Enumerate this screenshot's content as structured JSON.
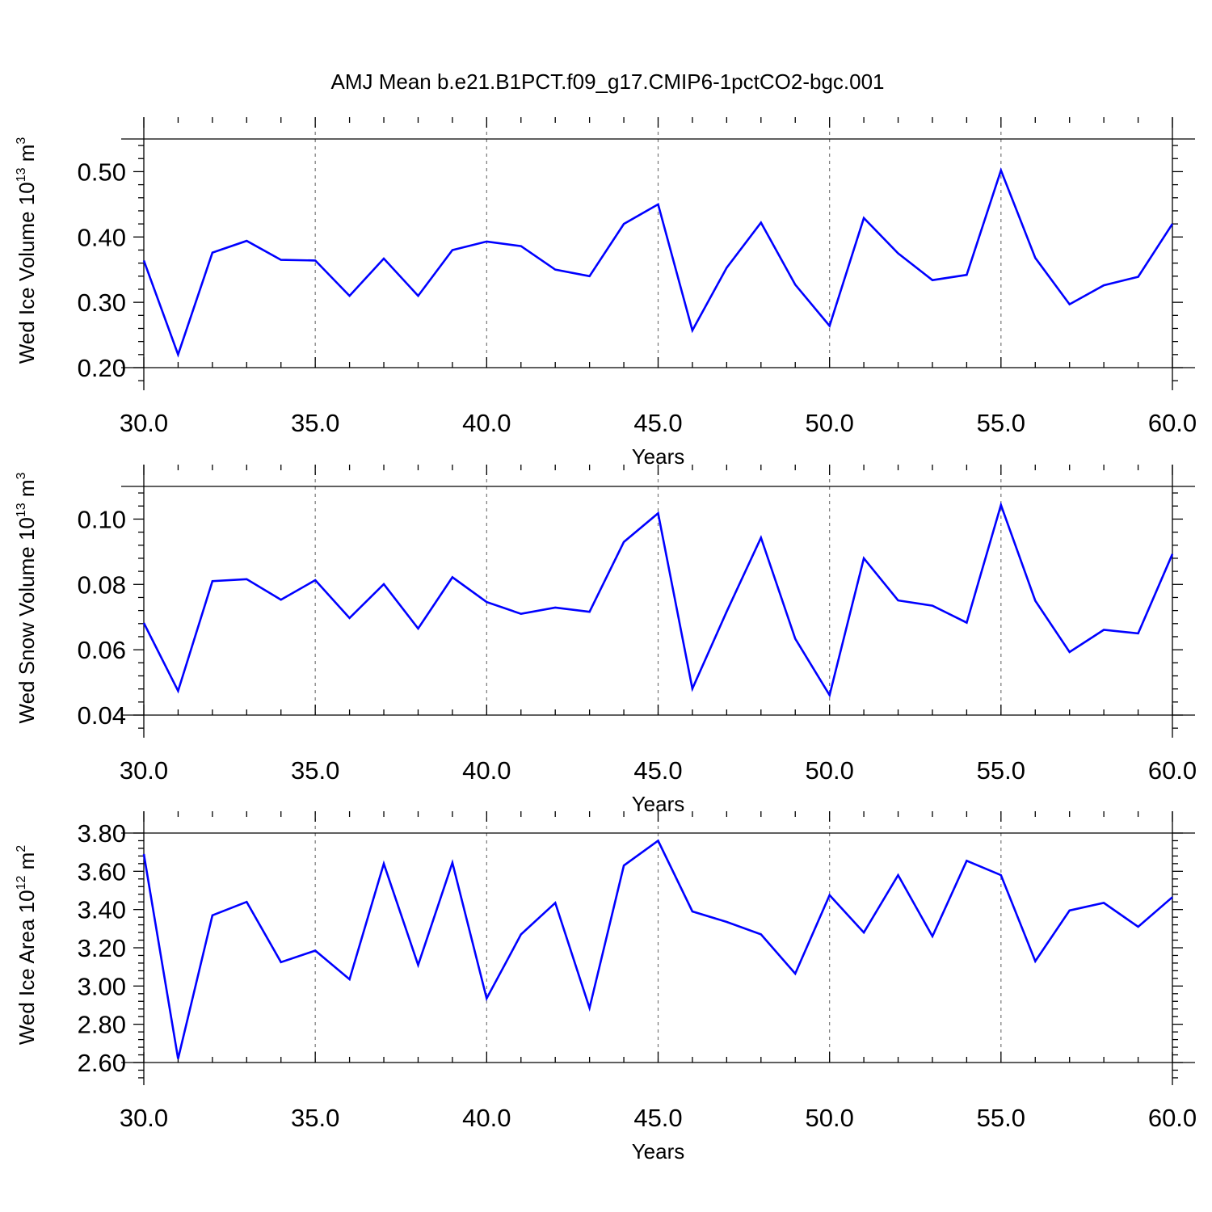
{
  "title": "AMJ Mean b.e21.B1PCT.f09_g17.CMIP6-1pctCO2-bgc.001",
  "colors": {
    "series": "#0000ff",
    "axis": "#000000",
    "grid": "#777777"
  },
  "chart_data": [
    {
      "type": "line",
      "xlabel": "Years",
      "ylabel": {
        "base": "Wed Ice Volume 10",
        "exp": "13",
        "unit": " m",
        "unit_exp": "3"
      },
      "xlim": [
        30,
        60
      ],
      "ylim": [
        0.2,
        0.55
      ],
      "xticks": [
        30,
        35,
        40,
        45,
        50,
        55,
        60
      ],
      "xtick_labels": [
        "30.0",
        "35.0",
        "40.0",
        "45.0",
        "50.0",
        "55.0",
        "60.0"
      ],
      "yticks": [
        0.2,
        0.3,
        0.4,
        0.5
      ],
      "ytick_labels": [
        "0.20",
        "0.30",
        "0.40",
        "0.50"
      ],
      "grid": "dashed vertical at major x ticks",
      "x": [
        30,
        31,
        32,
        33,
        34,
        35,
        36,
        37,
        38,
        39,
        40,
        41,
        42,
        43,
        44,
        45,
        46,
        47,
        48,
        49,
        50,
        51,
        52,
        53,
        54,
        55,
        56,
        57,
        58,
        59,
        60
      ],
      "series": [
        {
          "values": [
            0.364,
            0.22,
            0.376,
            0.394,
            0.365,
            0.364,
            0.31,
            0.367,
            0.31,
            0.38,
            0.393,
            0.386,
            0.35,
            0.34,
            0.42,
            0.45,
            0.257,
            0.353,
            0.422,
            0.327,
            0.264,
            0.429,
            0.375,
            0.334,
            0.342,
            0.502,
            0.368,
            0.297,
            0.326,
            0.339,
            0.42
          ]
        }
      ]
    },
    {
      "type": "line",
      "xlabel": "Years",
      "ylabel": {
        "base": "Wed Snow Volume 10",
        "exp": "13",
        "unit": " m",
        "unit_exp": "3"
      },
      "xlim": [
        30,
        60
      ],
      "ylim": [
        0.04,
        0.11
      ],
      "xticks": [
        30,
        35,
        40,
        45,
        50,
        55,
        60
      ],
      "xtick_labels": [
        "30.0",
        "35.0",
        "40.0",
        "45.0",
        "50.0",
        "55.0",
        "60.0"
      ],
      "yticks": [
        0.04,
        0.06,
        0.08,
        0.1
      ],
      "ytick_labels": [
        "0.04",
        "0.06",
        "0.08",
        "0.10"
      ],
      "grid": "dashed vertical at major x ticks",
      "x": [
        30,
        31,
        32,
        33,
        34,
        35,
        36,
        37,
        38,
        39,
        40,
        41,
        42,
        43,
        44,
        45,
        46,
        47,
        48,
        49,
        50,
        51,
        52,
        53,
        54,
        55,
        56,
        57,
        58,
        59,
        60
      ],
      "series": [
        {
          "values": [
            0.0682,
            0.0474,
            0.081,
            0.0816,
            0.0753,
            0.0813,
            0.0697,
            0.0801,
            0.0665,
            0.0822,
            0.0746,
            0.071,
            0.0729,
            0.0716,
            0.093,
            0.1018,
            0.0481,
            0.0717,
            0.0943,
            0.0634,
            0.0461,
            0.088,
            0.0751,
            0.0735,
            0.0683,
            0.1043,
            0.075,
            0.0593,
            0.0661,
            0.065,
            0.0893
          ]
        }
      ]
    },
    {
      "type": "line",
      "xlabel": "Years",
      "ylabel": {
        "base": "Wed Ice Area 10",
        "exp": "12",
        "unit": " m",
        "unit_exp": "2"
      },
      "xlim": [
        30,
        60
      ],
      "ylim": [
        2.6,
        3.8
      ],
      "xticks": [
        30,
        35,
        40,
        45,
        50,
        55,
        60
      ],
      "xtick_labels": [
        "30.0",
        "35.0",
        "40.0",
        "45.0",
        "50.0",
        "55.0",
        "60.0"
      ],
      "yticks": [
        2.6,
        2.8,
        3.0,
        3.2,
        3.4,
        3.6,
        3.8
      ],
      "ytick_labels": [
        "2.60",
        "2.80",
        "3.00",
        "3.20",
        "3.40",
        "3.60",
        "3.80"
      ],
      "grid": "dashed vertical at major x ticks",
      "x": [
        30,
        31,
        32,
        33,
        34,
        35,
        36,
        37,
        38,
        39,
        40,
        41,
        42,
        43,
        44,
        45,
        46,
        47,
        48,
        49,
        50,
        51,
        52,
        53,
        54,
        55,
        56,
        57,
        58,
        59,
        60
      ],
      "series": [
        {
          "values": [
            3.69,
            2.62,
            3.37,
            3.44,
            3.125,
            3.185,
            3.035,
            3.64,
            3.11,
            3.645,
            2.935,
            3.27,
            3.435,
            2.885,
            3.63,
            3.76,
            3.39,
            3.335,
            3.27,
            3.065,
            3.475,
            3.28,
            3.58,
            3.26,
            3.655,
            3.58,
            3.13,
            3.395,
            3.435,
            3.31,
            3.465
          ]
        }
      ]
    }
  ]
}
